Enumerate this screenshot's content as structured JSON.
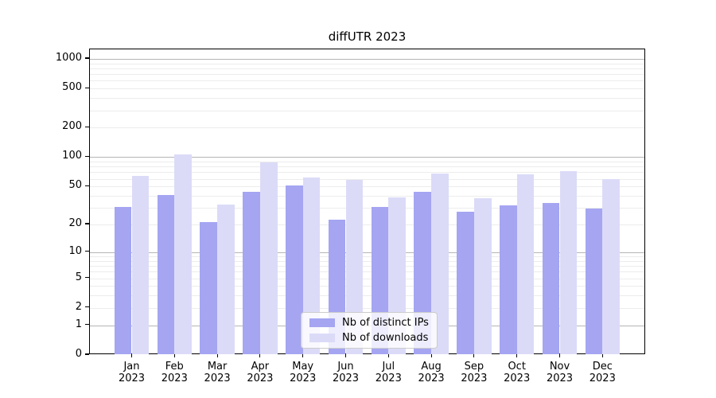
{
  "chart_data": {
    "type": "bar",
    "title": "diffUTR 2023",
    "categories": [
      "Jan 2023",
      "Feb 2023",
      "Mar 2023",
      "Apr 2023",
      "May 2023",
      "Jun 2023",
      "Jul 2023",
      "Aug 2023",
      "Sep 2023",
      "Oct 2023",
      "Nov 2023",
      "Dec 2023"
    ],
    "series": [
      {
        "name": "Nb of distinct IPs",
        "color": "#a5a5f2",
        "values": [
          30,
          40,
          21,
          43,
          50,
          22,
          30,
          43,
          27,
          31,
          33,
          29
        ]
      },
      {
        "name": "Nb of downloads",
        "color": "#dbdbf8",
        "values": [
          63,
          105,
          32,
          87,
          61,
          57,
          38,
          67,
          37,
          66,
          71,
          59
        ]
      }
    ],
    "yticks": [
      0,
      1,
      2,
      5,
      10,
      20,
      50,
      100,
      200,
      500,
      1000
    ],
    "scale": "log1p",
    "ylim": [
      0,
      1250
    ],
    "xlabel": "",
    "ylabel": "",
    "grid": "on",
    "legend_position": "lower center",
    "colors": {
      "frame": "#000000",
      "major_grid": "#b5b5b5",
      "minor_grid": "#ececec",
      "legend_border": "#cccccc",
      "background": "#ffffff"
    }
  }
}
